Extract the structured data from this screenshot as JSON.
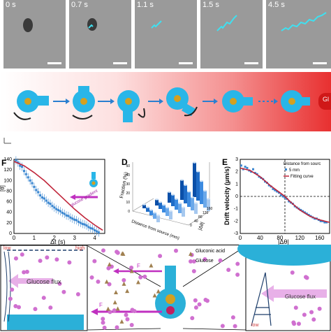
{
  "frames": [
    {
      "label": "0 s"
    },
    {
      "label": "0.7 s"
    },
    {
      "label": "1.1 s"
    },
    {
      "label": "1.5 s"
    },
    {
      "label": "4.5 s"
    }
  ],
  "panel_b": {
    "end_label": "Gl"
  },
  "panel_f": {
    "label": "F",
    "ylabel": "[θ]",
    "xlabel": "Δt (s)",
    "arrow_label": "glucose gradient",
    "yticks": [
      "0",
      "20",
      "40",
      "60",
      "80",
      "100",
      "120",
      "140"
    ],
    "xticks": [
      "0",
      "1",
      "2",
      "3",
      "4"
    ]
  },
  "panel_d": {
    "label": "D",
    "zlabel": "Fraction (%)",
    "axis1_label": "Distance from source (mm)",
    "axis2_label": "|Δθ|",
    "zticks": [
      "0",
      "10",
      "20",
      "30",
      "40",
      "50"
    ],
    "axis2_ticks": [
      "0",
      "40",
      "80",
      "120",
      "160"
    ]
  },
  "panel_e": {
    "label": "E",
    "ylabel": "Drift velocity (μm/s)",
    "xlabel": "|Δθ|",
    "legend_title": "Distance from sourc",
    "legend_items": [
      "5 mm",
      "Fitting curve"
    ],
    "yticks": [
      "-3",
      "-2",
      "-1",
      "0",
      "1",
      "2",
      "3"
    ],
    "xticks": [
      "0",
      "40",
      "80",
      "120",
      "160"
    ]
  },
  "panel_bottom": {
    "low_label": "low",
    "high_label": "high",
    "flux_label_left": "Glucose flux",
    "flux_label_right": "Glucose flux",
    "legend": [
      "Gluconic acid",
      "Glucose"
    ],
    "force_label": "F",
    "force_label_2": "F",
    "low_label_right": "low"
  },
  "chart_data": [
    {
      "type": "scatter",
      "title": "",
      "xlabel": "Δt (s)",
      "ylabel": "[θ]",
      "xlim": [
        0,
        4.5
      ],
      "ylim": [
        0,
        140
      ],
      "series": [
        {
          "values": [
            [
              0.1,
              138
            ],
            [
              0.2,
              134
            ],
            [
              0.3,
              128
            ],
            [
              0.4,
              126
            ],
            [
              0.5,
              118
            ],
            [
              0.6,
              112
            ],
            [
              0.7,
              106
            ],
            [
              0.8,
              100
            ],
            [
              0.9,
              95
            ],
            [
              1.0,
              88
            ],
            [
              1.1,
              82
            ],
            [
              1.2,
              78
            ],
            [
              1.3,
              72
            ],
            [
              1.4,
              68
            ],
            [
              1.5,
              66
            ],
            [
              1.6,
              62
            ],
            [
              1.7,
              58
            ],
            [
              1.8,
              56
            ],
            [
              1.9,
              52
            ],
            [
              2.0,
              49
            ],
            [
              2.1,
              46
            ],
            [
              2.2,
              44
            ],
            [
              2.3,
              42
            ],
            [
              2.4,
              39
            ],
            [
              2.5,
              37
            ],
            [
              2.6,
              34
            ],
            [
              2.7,
              33
            ],
            [
              2.8,
              30
            ],
            [
              2.9,
              28
            ],
            [
              3.0,
              26
            ],
            [
              3.1,
              25
            ],
            [
              3.2,
              22
            ],
            [
              3.3,
              20
            ],
            [
              3.4,
              18
            ],
            [
              3.5,
              17
            ],
            [
              3.6,
              15
            ],
            [
              3.7,
              12
            ],
            [
              3.8,
              10
            ],
            [
              3.9,
              9
            ],
            [
              4.0,
              6
            ],
            [
              4.1,
              4
            ],
            [
              4.2,
              2
            ]
          ]
        },
        {
          "values": [
            [
              0,
              136
            ],
            [
              0.5,
              128
            ],
            [
              1.0,
              115
            ],
            [
              1.5,
              100
            ],
            [
              2.0,
              82
            ],
            [
              2.5,
              64
            ],
            [
              3.0,
              46
            ],
            [
              3.5,
              30
            ],
            [
              4.0,
              16
            ],
            [
              4.4,
              6
            ]
          ]
        }
      ]
    },
    {
      "type": "bar",
      "title": "",
      "xlabel": "|Δθ|",
      "ylabel": "Fraction (%)",
      "categories": [
        "0",
        "40",
        "80",
        "120",
        "160"
      ],
      "series": [
        {
          "values": [
            5,
            8,
            14,
            26,
            45
          ]
        },
        {
          "values": [
            6,
            9,
            15,
            24,
            38
          ]
        },
        {
          "values": [
            7,
            10,
            14,
            20,
            30
          ]
        },
        {
          "values": [
            8,
            11,
            13,
            17,
            22
          ]
        },
        {
          "values": [
            9,
            11,
            12,
            14,
            16
          ]
        }
      ]
    },
    {
      "type": "scatter",
      "title": "",
      "xlabel": "|Δθ|",
      "ylabel": "Drift velocity (μm/s)",
      "xlim": [
        0,
        180
      ],
      "ylim": [
        -3,
        3
      ],
      "series": [
        {
          "name": "5 mm",
          "values": [
            [
              2,
              2.5
            ],
            [
              6,
              2.2
            ],
            [
              10,
              2.4
            ],
            [
              14,
              2.3
            ],
            [
              18,
              2.1
            ],
            [
              22,
              2.0
            ],
            [
              26,
              2.2
            ],
            [
              30,
              1.9
            ],
            [
              34,
              1.8
            ],
            [
              38,
              1.6
            ],
            [
              42,
              1.5
            ],
            [
              46,
              1.4
            ],
            [
              50,
              1.2
            ],
            [
              54,
              1.1
            ],
            [
              58,
              0.9
            ],
            [
              62,
              0.8
            ],
            [
              66,
              0.6
            ],
            [
              70,
              0.5
            ],
            [
              74,
              0.4
            ],
            [
              78,
              0.3
            ],
            [
              82,
              0.1
            ],
            [
              86,
              0.0
            ],
            [
              90,
              -0.1
            ],
            [
              94,
              -0.2
            ],
            [
              98,
              -0.4
            ],
            [
              102,
              -0.5
            ],
            [
              106,
              -0.6
            ],
            [
              110,
              -0.8
            ],
            [
              114,
              -0.9
            ],
            [
              118,
              -1.0
            ],
            [
              122,
              -1.1
            ],
            [
              126,
              -1.2
            ],
            [
              130,
              -1.3
            ],
            [
              134,
              -1.4
            ],
            [
              138,
              -1.5
            ],
            [
              142,
              -1.6
            ],
            [
              146,
              -1.7
            ],
            [
              150,
              -1.8
            ],
            [
              154,
              -1.8
            ],
            [
              158,
              -1.9
            ],
            [
              162,
              -2.0
            ],
            [
              166,
              -2.0
            ],
            [
              170,
              -2.1
            ],
            [
              174,
              -2.1
            ]
          ]
        },
        {
          "name": "Fitting curve",
          "values": [
            [
              0,
              2.3
            ],
            [
              20,
              2.1
            ],
            [
              40,
              1.6
            ],
            [
              60,
              0.9
            ],
            [
              80,
              0.3
            ],
            [
              90,
              0.0
            ],
            [
              100,
              -0.4
            ],
            [
              120,
              -1.1
            ],
            [
              140,
              -1.6
            ],
            [
              160,
              -1.9
            ],
            [
              180,
              -2.1
            ]
          ]
        }
      ]
    }
  ]
}
